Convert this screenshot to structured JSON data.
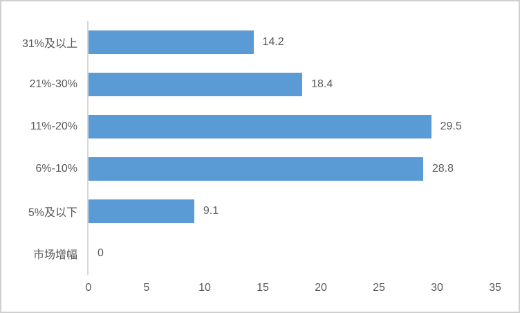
{
  "chart_data": {
    "type": "bar",
    "orientation": "horizontal",
    "title": "",
    "xlabel": "",
    "ylabel": "",
    "categories": [
      "31%及以上",
      "21%-30%",
      "11%-20%",
      "6%-10%",
      "5%及以下",
      "市场增幅"
    ],
    "values": [
      14.2,
      18.4,
      29.5,
      28.8,
      9.1,
      0
    ],
    "data_labels": [
      "14.2",
      "18.4",
      "29.5",
      "28.8",
      "9.1",
      "0"
    ],
    "xlim": [
      0,
      35
    ],
    "x_ticks": [
      0,
      5,
      10,
      15,
      20,
      25,
      30,
      35
    ],
    "grid": false,
    "legend": false,
    "colors": {
      "bar": "#5b9bd5",
      "text": "#595959",
      "axis_line": "#d6d6d6",
      "frame_border": "#cfcfcf",
      "background": "#ffffff"
    }
  }
}
